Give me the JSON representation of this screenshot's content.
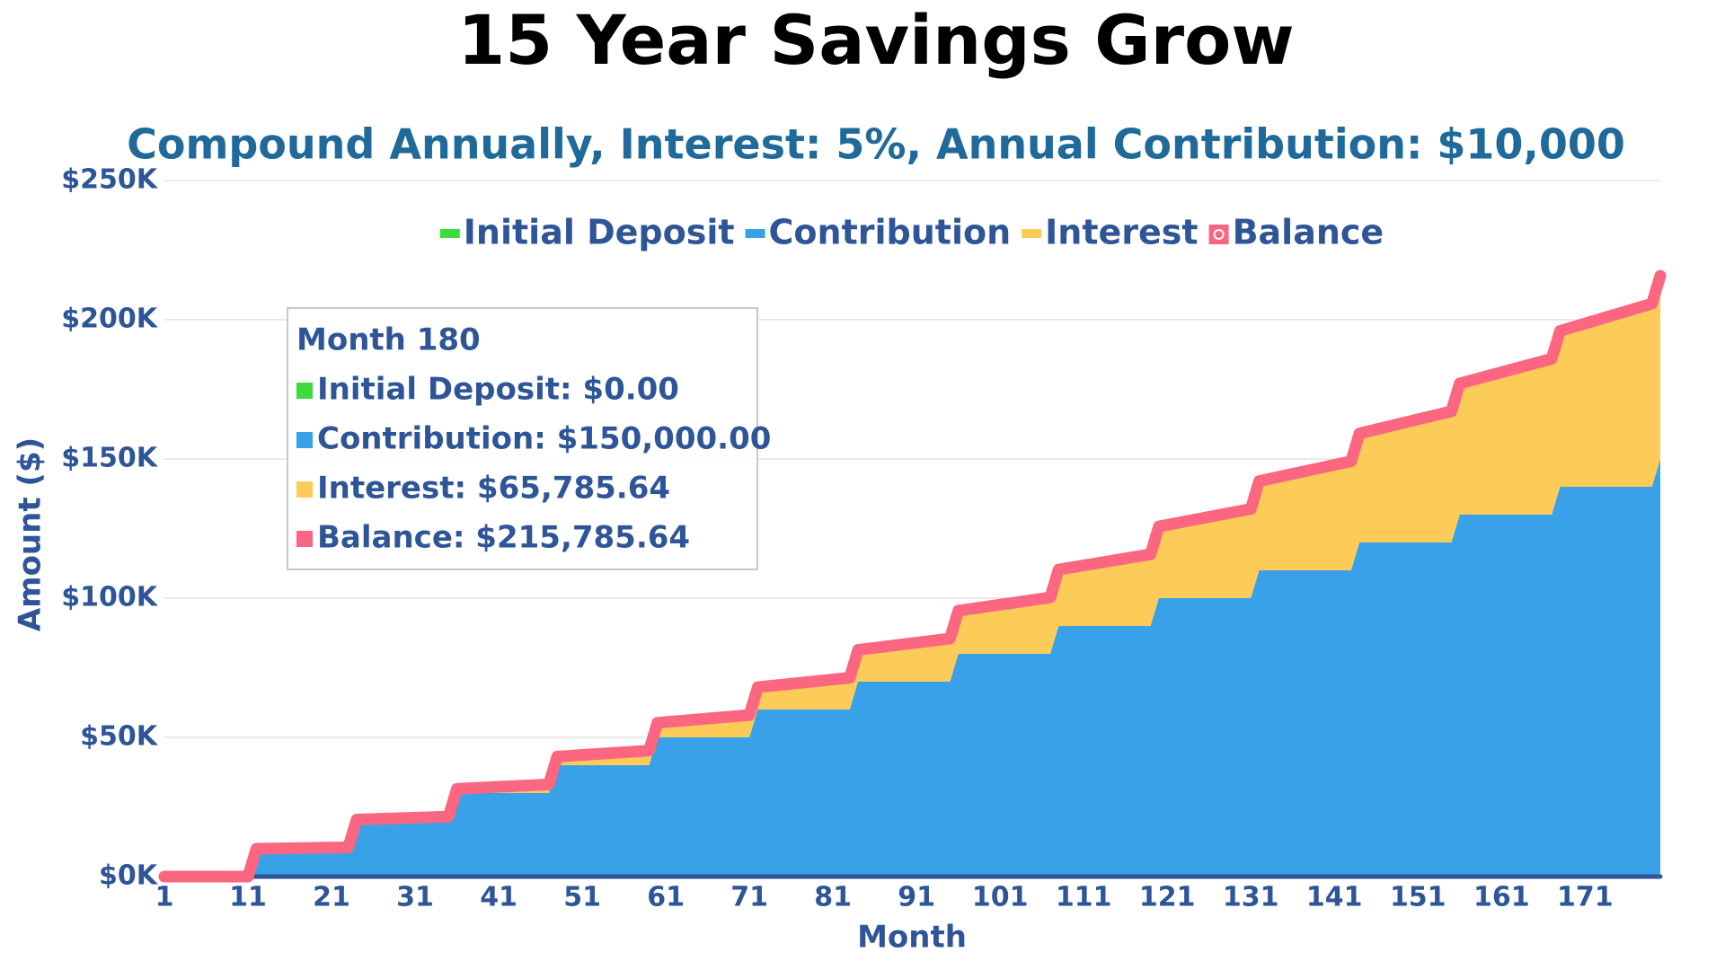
{
  "chart_data": {
    "type": "area",
    "title": "15 Year Savings Grow",
    "subtitle": "Compound Annually, Interest: 5%, Annual Contribution: $10,000",
    "xlabel": "Month",
    "ylabel": "Amount ($)",
    "x": [
      1,
      11,
      12,
      23,
      24,
      35,
      36,
      47,
      48,
      59,
      60,
      71,
      72,
      83,
      84,
      95,
      96,
      107,
      108,
      119,
      120,
      131,
      132,
      143,
      144,
      155,
      156,
      167,
      168,
      179,
      180
    ],
    "xlim": [
      1,
      180
    ],
    "xticks": [
      1,
      11,
      21,
      31,
      41,
      51,
      61,
      71,
      81,
      91,
      101,
      111,
      121,
      131,
      141,
      151,
      161,
      171
    ],
    "ylim": [
      0,
      250000
    ],
    "yticks": [
      {
        "value": 0,
        "label": "$0K"
      },
      {
        "value": 50000,
        "label": "$50K"
      },
      {
        "value": 100000,
        "label": "$100K"
      },
      {
        "value": 150000,
        "label": "$150K"
      },
      {
        "value": 200000,
        "label": "$200K"
      },
      {
        "value": 250000,
        "label": "$250K"
      }
    ],
    "grid": true,
    "series": [
      {
        "name": "Initial Deposit",
        "color": "#3ddc3d",
        "values": [
          0,
          0,
          0,
          0,
          0,
          0,
          0,
          0,
          0,
          0,
          0,
          0,
          0,
          0,
          0,
          0,
          0,
          0,
          0,
          0,
          0,
          0,
          0,
          0,
          0,
          0,
          0,
          0,
          0,
          0,
          0
        ]
      },
      {
        "name": "Contribution",
        "color": "#38a1e8",
        "values": [
          0,
          0,
          10000,
          10000,
          20000,
          20000,
          30000,
          30000,
          40000,
          40000,
          50000,
          50000,
          60000,
          60000,
          70000,
          70000,
          80000,
          80000,
          90000,
          90000,
          100000,
          100000,
          110000,
          110000,
          120000,
          120000,
          130000,
          130000,
          140000,
          140000,
          150000
        ]
      },
      {
        "name": "Interest",
        "color": "#fdcb58",
        "values": [
          0,
          0,
          0,
          500,
          500,
          1525,
          1525,
          3101,
          3101.25,
          5256,
          5256.31,
          8019,
          8019.13,
          11420,
          11420.09,
          15491,
          15491.09,
          20266,
          20265.65,
          25779,
          25778.93,
          32068,
          32067.87,
          39171,
          39171.27,
          47130,
          47129.83,
          55986,
          55986.32,
          65786,
          65785.64
        ]
      },
      {
        "name": "Balance",
        "type": "line",
        "color": "#fb6681",
        "values": [
          0,
          0,
          10000,
          10500,
          20500,
          21525,
          31525,
          33101,
          43101.25,
          45256,
          55256.31,
          58019,
          68019.13,
          71420,
          81420.09,
          85491,
          95491.09,
          100266,
          110265.65,
          115779,
          125778.93,
          132068,
          142067.87,
          149171,
          159171.27,
          167130,
          177129.83,
          185986,
          195986.32,
          205786,
          215785.64
        ]
      }
    ],
    "tooltip": {
      "title": "Month 180",
      "items": [
        "Initial Deposit: $0.00",
        "Contribution: $150,000.00",
        "Interest: $65,785.64",
        "Balance: $215,785.64"
      ]
    }
  }
}
